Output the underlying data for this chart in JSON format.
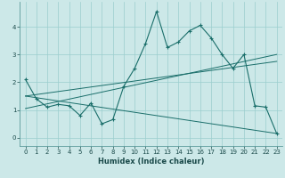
{
  "title": "",
  "xlabel": "Humidex (Indice chaleur)",
  "bg_color": "#cce8e8",
  "line_color": "#1a6e6a",
  "grid_color": "#9bcece",
  "xlim": [
    -0.5,
    23.5
  ],
  "ylim": [
    -0.3,
    4.9
  ],
  "xticks": [
    0,
    1,
    2,
    3,
    4,
    5,
    6,
    7,
    8,
    9,
    10,
    11,
    12,
    13,
    14,
    15,
    16,
    17,
    18,
    19,
    20,
    21,
    22,
    23
  ],
  "yticks": [
    0,
    1,
    2,
    3,
    4
  ],
  "main_x": [
    0,
    1,
    2,
    3,
    4,
    5,
    6,
    7,
    8,
    9,
    10,
    11,
    12,
    13,
    14,
    15,
    16,
    17,
    18,
    19,
    20,
    21,
    22,
    23
  ],
  "main_y": [
    2.1,
    1.4,
    1.1,
    1.2,
    1.15,
    0.8,
    1.25,
    0.5,
    0.65,
    1.85,
    2.5,
    3.4,
    4.55,
    3.25,
    3.45,
    3.85,
    4.05,
    3.6,
    3.0,
    2.5,
    3.0,
    1.15,
    1.1,
    0.15
  ],
  "line1_x": [
    0,
    23
  ],
  "line1_y": [
    1.05,
    3.0
  ],
  "line2_x": [
    0,
    23
  ],
  "line2_y": [
    1.5,
    2.75
  ],
  "line3_x": [
    0,
    23
  ],
  "line3_y": [
    1.5,
    0.15
  ]
}
